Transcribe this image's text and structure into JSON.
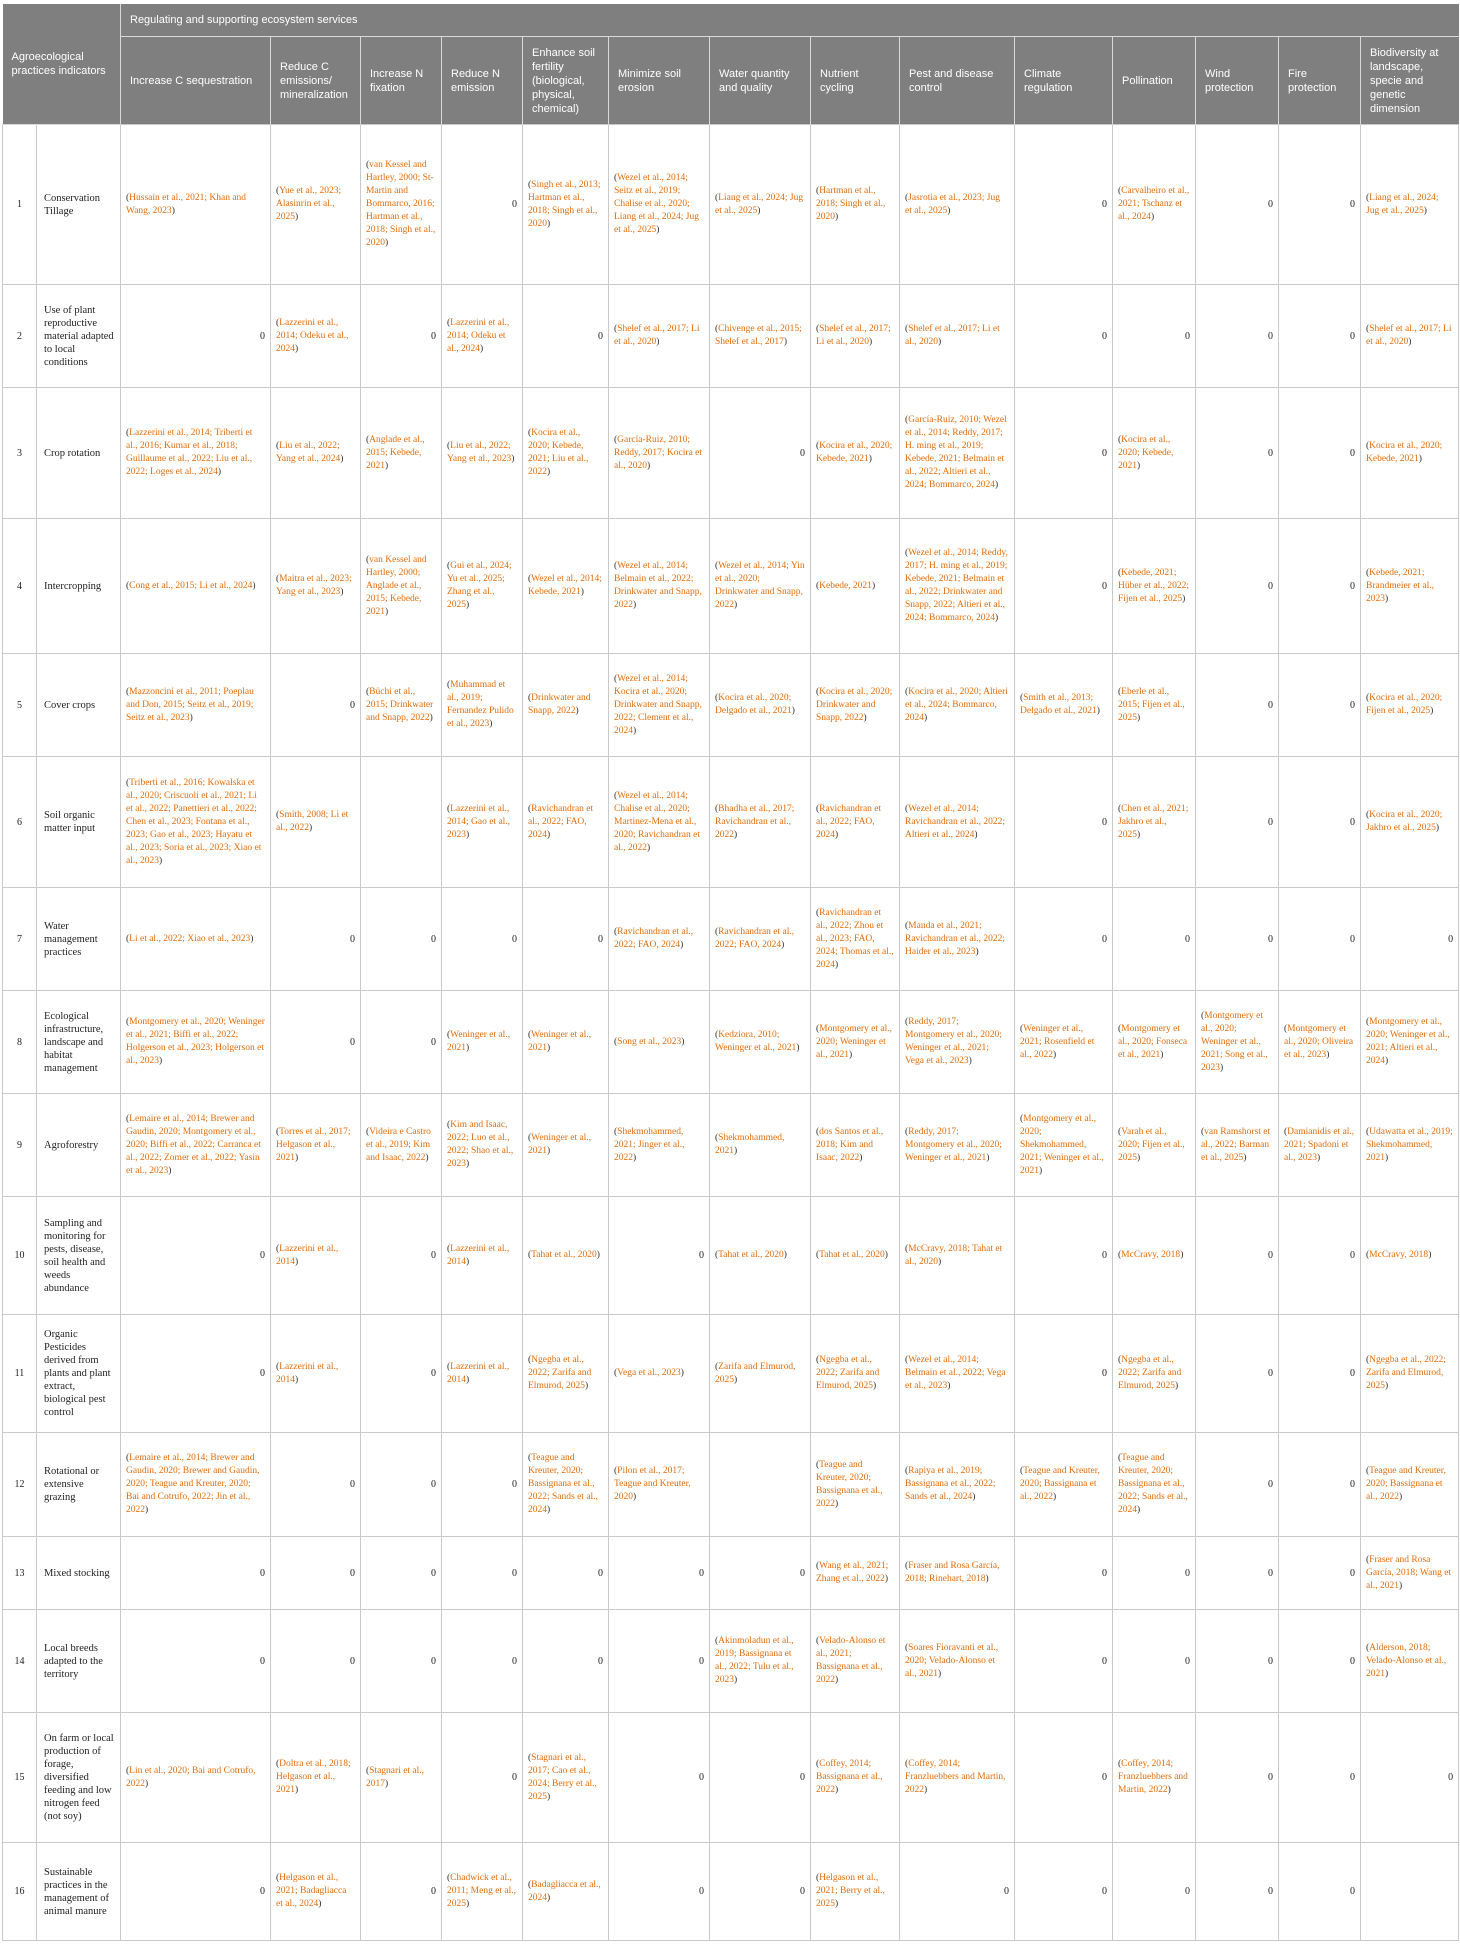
{
  "header": {
    "indicators_label": "Agroecological practices indicators",
    "group_label": "Regulating and supporting ecosystem services",
    "columns": [
      "Increase C sequestration",
      "Reduce C emissions/ mineralization",
      "Increase N fixation",
      "Reduce N emission",
      "Enhance soil fertility (biological, physical, chemical)",
      "Minimize soil erosion",
      "Water quantity and quality",
      "Nutrient cycling",
      "Pest and disease control",
      "Climate regulation",
      "Pollination",
      "Wind protection",
      "Fire protection",
      "Biodiversity at landscape, specie and genetic dimension"
    ]
  },
  "rows": [
    {
      "num": "1",
      "practice": "Conservation Tillage",
      "cells": [
        "Hussain et al., 2021; Khan and Wang, 2023",
        "Yue et al., 2023; Alasinrin et al., 2025",
        "van Kessel and Hartley, 2000; St-Martin and Bommarco, 2016; Hartman et al., 2018; Singh et al., 2020",
        "0",
        "Singh et al., 2013; Hartman et al., 2018; Singh et al., 2020",
        "Wezel et al., 2014; Seitz et al., 2019; Chalise et al., 2020; Liang et al., 2024; Jug et al., 2025",
        "Liang et al., 2024; Jug et al., 2025",
        "Hartman et al., 2018; Singh et al., 2020",
        "Jasrotia et al., 2023; Jug et al., 2025",
        "0",
        "Carvalheiro et al., 2021; Tschanz et al., 2024",
        "0",
        "0",
        "Liang et al., 2024; Jug et al., 2025"
      ]
    },
    {
      "num": "2",
      "practice": "Use of plant reproductive material adapted to local conditions",
      "cells": [
        "0",
        "Lazzerini et al., 2014; Odeku et al., 2024",
        "0",
        "Lazzerini et al., 2014; Odeku et al., 2024",
        "0",
        "Shelef et al., 2017; Li et al., 2020",
        "Chivenge et al., 2015; Shelef et al., 2017",
        "Shelef et al., 2017; Li et al., 2020",
        "Shelef et al., 2017; Li et al., 2020",
        "0",
        "0",
        "0",
        "0",
        "Shelef et al., 2017; Li et al., 2020"
      ]
    },
    {
      "num": "3",
      "practice": "Crop rotation",
      "cells": [
        "Lazzerini et al., 2014; Triberti et al., 2016; Kumar et al., 2018; Guillaume et al., 2022; Liu et al., 2022; Loges et al., 2024",
        "Liu et al., 2022; Yang et al., 2024",
        "Anglade et al., 2015; Kebede, 2021",
        "Liu et al., 2022; Yang et al., 2023",
        "Kocira et al., 2020; Kebede, 2021; Liu et al., 2022",
        "García-Ruiz, 2010; Reddy, 2017; Kocira et al., 2020",
        "0",
        "Kocira et al., 2020; Kebede, 2021",
        "García-Ruiz, 2010; Wezel et al., 2014; Reddy, 2017; H. ming et al., 2019; Kebede, 2021; Belmain et al., 2022; Altieri et al., 2024; Bommarco, 2024",
        "0",
        "Kocira et al., 2020; Kebede, 2021",
        "0",
        "0",
        "Kocira et al., 2020; Kebede, 2021"
      ]
    },
    {
      "num": "4",
      "practice": "Intercropping",
      "cells": [
        "Cong et al., 2015; Li et al., 2024",
        "Maitra et al., 2023; Yang et al., 2023",
        "van Kessel and Hartley, 2000; Anglade et al., 2015; Kebede, 2021",
        "Gui et al., 2024; Yu et al., 2025; Zhang et al., 2025",
        "Wezel et al., 2014; Kebede, 2021",
        "Wezel et al., 2014; Belmain et al., 2022; Drinkwater and Snapp, 2022",
        "Wezel et al., 2014; Yin et al., 2020; Drinkwater and Snapp, 2022",
        "Kebede, 2021",
        "Wezel et al., 2014; Reddy, 2017; H. ming et al., 2019; Kebede, 2021; Belmain et al., 2022; Drinkwater and Snapp, 2022; Altieri et al., 2024; Bommarco, 2024",
        "0",
        "Kebede, 2021; Hüber et al., 2022; Fijen et al., 2025",
        "0",
        "0",
        "Kebede, 2021; Brandmeier et al., 2023"
      ]
    },
    {
      "num": "5",
      "practice": "Cover crops",
      "cells": [
        "Mazzoncini et al., 2011; Poeplau and Don, 2015; Seitz et al., 2019; Seitz et al., 2023",
        "0",
        "Büchi et al., 2015; Drinkwater and Snapp, 2022",
        "Muhammad et al., 2019; Fernandez Pulido et al., 2023",
        "Drinkwater and Snapp, 2022",
        "Wezel et al., 2014; Kocira et al., 2020; Drinkwater and Snapp, 2022; Clement et al., 2024",
        "Kocira et al., 2020; Delgado et al., 2021",
        "Kocira et al., 2020; Drinkwater and Snapp, 2022",
        "Kocira et al., 2020; Altieri et al., 2024; Bommarco, 2024",
        "Smith et al., 2013; Delgado et al., 2021",
        "Eberle et al., 2015; Fijen et al., 2025",
        "0",
        "0",
        "Kocira et al., 2020; Fijen et al., 2025"
      ]
    },
    {
      "num": "6",
      "practice": "Soil organic matter input",
      "cells": [
        "Triberti et al., 2016; Kowalska et al., 2020; Criscuoli et al., 2021; Li et al., 2022; Panettieri et al., 2022; Chen et al., 2023; Fontana et al., 2023; Gao et al., 2023; Hayatu et al., 2023; Soria et al., 2023; Xiao et al., 2023",
        "Smith, 2008; Li et al., 2022",
        "",
        "Lazzerini et al., 2014; Gao et al., 2023",
        "Ravichandran et al., 2022; FAO, 2024",
        "Wezel et al., 2014; Chalise et al., 2020; Martinez-Mena et al., 2020; Ravichandran et al., 2022",
        "Bhadha et al., 2017; Ravichandran et al., 2022",
        "Ravichandran et al., 2022; FAO, 2024",
        "Wezel et al., 2014; Ravichandran et al., 2022; Altieri et al., 2024",
        "0",
        "Chen et al., 2021; Jakhro et al., 2025",
        "0",
        "0",
        "Kocira et al., 2020; Jakhro et al., 2025"
      ]
    },
    {
      "num": "7",
      "practice": "Water management practices",
      "cells": [
        "Li et al., 2022; Xiao et al., 2023",
        "0",
        "0",
        "0",
        "0",
        "Ravichandran et al., 2022; FAO, 2024",
        "Ravichandran et al., 2022; FAO, 2024",
        "Ravichandran et al., 2022; Zhou et al., 2023; FAO, 2024; Thomas et al., 2024",
        "Manda et al., 2021; Ravichandran et al., 2022; Haider et al., 2023",
        "0",
        "0",
        "0",
        "0",
        "0"
      ]
    },
    {
      "num": "8",
      "practice": "Ecological infrastructure, landscape and habitat management",
      "cells": [
        "Montgomery et al., 2020; Weninger et al., 2021; Biffi et al., 2022; Holgerson et al., 2023; Holgerson et al., 2023",
        "0",
        "0",
        "Weninger et al., 2021",
        "Weninger et al., 2021",
        "Song et al., 2023",
        "Kedziora, 2010; Weninger et al., 2021",
        "Montgomery et al., 2020; Weninger et al., 2021",
        "Reddy, 2017; Montgomery et al., 2020; Weninger et al., 2021; Vega et al., 2023",
        "Weninger et al., 2021; Rosenfield et al., 2022",
        "Montgomery et al., 2020; Fonseca et al., 2021",
        "Montgomery et al., 2020; Weninger et al., 2021; Song et al., 2023",
        "Montgomery et al., 2020; Oliveira et al., 2023",
        "Montgomery et al., 2020; Weninger et al., 2021; Altieri et al., 2024"
      ]
    },
    {
      "num": "9",
      "practice": "Agroforestry",
      "cells": [
        "Lemaire et al., 2014; Brewer and Gaudin, 2020; Montgomery et al., 2020; Biffi et al., 2022; Carranca et al., 2022; Zomer et al., 2022; Yasin et al., 2023",
        "Torres et al., 2017; Helgason et al., 2021",
        "Videira e Castro et al., 2019; Kim and Isaac, 2022",
        "Kim and Isaac, 2022; Luo et al., 2022; Shao et al., 2023",
        "Weninger et al., 2021",
        "Shekmohammed, 2021; Jinger et al., 2022",
        "Shekmohammed, 2021",
        "dos Santos et al., 2018; Kim and Isaac, 2022",
        "Reddy, 2017; Montgomery et al., 2020; Weninger et al., 2021",
        "Montgomery et al., 2020; Shekmohammed, 2021; Weninger et al., 2021",
        "Varah et al., 2020; Fijen et al., 2025",
        "van Ramshorst et al., 2022; Barman et al., 2025",
        "Damianidis et al., 2021; Spadoni et al., 2023",
        "Udawatta et al., 2019; Shekmohammed, 2021"
      ]
    },
    {
      "num": "10",
      "practice": "Sampling and monitoring for pests, disease, soil health and weeds abundance",
      "cells": [
        "0",
        "Lazzerini et al., 2014",
        "0",
        "Lazzerini et al., 2014",
        "Tahat et al., 2020",
        "0",
        "Tahat et al., 2020",
        "Tahat et al., 2020",
        "McCravy, 2018; Tahat et al., 2020",
        "0",
        "McCravy, 2018",
        "0",
        "0",
        "McCravy, 2018"
      ]
    },
    {
      "num": "11",
      "practice": "Organic Pesticides derived from plants and plant extract, biological pest control",
      "cells": [
        "0",
        "Lazzerini et al., 2014",
        "0",
        "Lazzerini et al., 2014",
        "Ngegba et al., 2022; Zarifa and Elmurod, 2025",
        "Vega et al., 2023",
        "Zarifa and Elmurod, 2025",
        "Ngegba et al., 2022; Zarifa and Elmurod, 2025",
        "Wezel et al., 2014; Belmain et al., 2022; Vega et al., 2023",
        "0",
        "Ngegba et al., 2022; Zarifa and Elmurod, 2025",
        "0",
        "0",
        "Ngegba et al., 2022; Zarifa and Elmurod, 2025"
      ]
    },
    {
      "num": "12",
      "practice": "Rotational or extensive grazing",
      "cells": [
        "Lemaire et al., 2014; Brewer and Gaudin, 2020; Brewer and Gaudin, 2020; Teague and Kreuter, 2020; Bai and Cotrufo, 2022; Jin et al., 2022",
        "0",
        "0",
        "0",
        "Teague and Kreuter, 2020; Bassignana et al., 2022; Sands et al., 2024",
        "Pilon et al., 2017; Teague and Kreuter, 2020",
        "",
        "Teague and Kreuter, 2020; Bassignana et al., 2022",
        "Rapiya et al., 2019; Bassignana et al., 2022; Sands et al., 2024",
        "Teague and Kreuter, 2020; Bassignana et al., 2022",
        "Teague and Kreuter, 2020; Bassignana et al., 2022; Sands et al., 2024",
        "0",
        "0",
        "Teague and Kreuter, 2020; Bassignana et al., 2022"
      ]
    },
    {
      "num": "13",
      "practice": "Mixed stocking",
      "cells": [
        "0",
        "0",
        "0",
        "0",
        "0",
        "0",
        "0",
        "Wang et al., 2021; Zhang et al., 2022",
        "Fraser and Rosa García, 2018; Rinehart, 2018",
        "0",
        "0",
        "0",
        "0",
        "Fraser and Rosa García, 2018; Wang et al., 2021"
      ]
    },
    {
      "num": "14",
      "practice": "Local breeds adapted to the territory",
      "cells": [
        "0",
        "0",
        "0",
        "0",
        "0",
        "0",
        "Akinmoladun et al., 2019; Bassignana et al., 2022; Tulu et al., 2023",
        "Velado-Alonso et al., 2021; Bassignana et al., 2022",
        "Soares Fioravanti et al., 2020; Velado-Alonso et al., 2021",
        "0",
        "0",
        "0",
        "0",
        "Alderson, 2018; Velado-Alonso et al., 2021"
      ]
    },
    {
      "num": "15",
      "practice": "On farm or local production of forage, diversified feeding and low nitrogen feed (not soy)",
      "cells": [
        "Lin et al., 2020; Bai and Cotrufo, 2022",
        "Doltra et al., 2018; Helgason et al., 2021",
        "Stagnari et al., 2017",
        "0",
        "Stagnari et al., 2017; Cao et al., 2024; Berry et al., 2025",
        "0",
        "0",
        "Coffey, 2014; Bassignana et al., 2022",
        "Coffey, 2014; Franzluebbers and Martin, 2022",
        "0",
        "Coffey, 2014; Franzluebbers and Martin, 2022",
        "0",
        "0",
        "0"
      ]
    },
    {
      "num": "16",
      "practice": "Sustainable practices in the management of animal manure",
      "cells": [
        "0",
        "Helgason et al., 2021; Badagliacca et al., 2024",
        "0",
        "Chadwick et al., 2011; Meng et al., 2025",
        "Badagliacca et al., 2024",
        "0",
        "0",
        "Helgason et al., 2021; Berry et al., 2025",
        "0",
        "0",
        "0",
        "0",
        "0",
        ""
      ]
    }
  ]
}
